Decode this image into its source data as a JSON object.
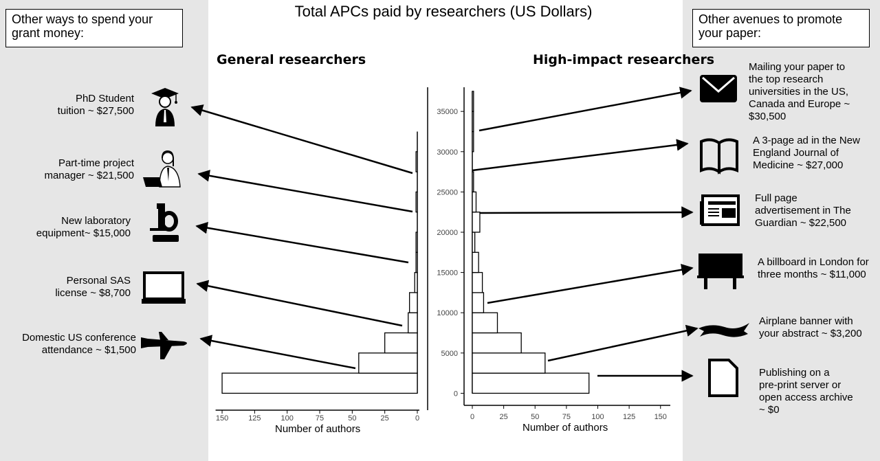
{
  "title": "Total APCs paid by researchers (US Dollars)",
  "left_box": "Other ways to spend your grant money:",
  "right_box": "Other avenues to promote your paper:",
  "left_items": [
    {
      "line1": "PhD Student",
      "line2": "tuition ~ $27,500",
      "icon": "graduate-icon"
    },
    {
      "line1": "Part-time project",
      "line2": "manager ~ $21,500",
      "icon": "office-worker-icon"
    },
    {
      "line1": "New laboratory",
      "line2": "equipment~ $15,000",
      "icon": "microscope-icon"
    },
    {
      "line1": "Personal SAS",
      "line2": "license ~ $8,700",
      "icon": "laptop-icon"
    },
    {
      "line1": "Domestic US conference",
      "line2": "attendance  ~ $1,500",
      "icon": "airplane-icon"
    }
  ],
  "right_items": [
    {
      "lines": [
        "Mailing your paper to",
        "the top research",
        "universities in the US,",
        "Canada and Europe ~",
        "$30,500"
      ],
      "icon": "envelope-icon"
    },
    {
      "lines": [
        "A 3-page ad in the New",
        "England Journal of",
        "Medicine ~ $27,000"
      ],
      "icon": "open-book-icon"
    },
    {
      "lines": [
        "Full page",
        "advertisement in The",
        "Guardian ~ $22,500"
      ],
      "icon": "newspaper-icon"
    },
    {
      "lines": [
        "A billboard in London for",
        "three months ~ $11,000"
      ],
      "icon": "billboard-icon"
    },
    {
      "lines": [
        "Airplane banner with",
        "your abstract ~ $3,200"
      ],
      "icon": "banner-icon"
    },
    {
      "lines": [
        "Publishing on a",
        "pre-print server or",
        "open access archive",
        "~ $0"
      ],
      "icon": "document-icon"
    }
  ],
  "chart_data": [
    {
      "type": "bar",
      "orientation": "horizontal",
      "title": "General researchers",
      "xlabel": "Number of authors",
      "ylabel": "",
      "x_ticks": [
        150,
        125,
        100,
        75,
        50,
        25,
        0
      ],
      "xlim": [
        0,
        155
      ],
      "x_reversed": true,
      "ylim": [
        -1500,
        38000
      ],
      "bin_width": 2500,
      "bins": [
        {
          "from": 0,
          "to": 2500,
          "count": 150
        },
        {
          "from": 2500,
          "to": 5000,
          "count": 45
        },
        {
          "from": 5000,
          "to": 7500,
          "count": 25
        },
        {
          "from": 7500,
          "to": 10000,
          "count": 7
        },
        {
          "from": 10000,
          "to": 12500,
          "count": 6
        },
        {
          "from": 12500,
          "to": 15000,
          "count": 2
        },
        {
          "from": 15000,
          "to": 17500,
          "count": 1
        },
        {
          "from": 17500,
          "to": 20000,
          "count": 1
        },
        {
          "from": 20000,
          "to": 22500,
          "count": 0
        },
        {
          "from": 22500,
          "to": 25000,
          "count": 1
        },
        {
          "from": 25000,
          "to": 27500,
          "count": 0
        },
        {
          "from": 27500,
          "to": 30000,
          "count": 1
        },
        {
          "from": 30000,
          "to": 32500,
          "count": 0
        }
      ],
      "axis_max": 32500
    },
    {
      "type": "bar",
      "orientation": "horizontal",
      "title": "High-impact researchers",
      "xlabel": "Number of authors",
      "ylabel": "",
      "x_ticks": [
        0,
        25,
        50,
        75,
        100,
        125,
        150
      ],
      "y_ticks": [
        0,
        5000,
        10000,
        15000,
        20000,
        25000,
        30000,
        35000
      ],
      "xlim": [
        0,
        155
      ],
      "ylim": [
        -1500,
        38000
      ],
      "bin_width": 2500,
      "bins": [
        {
          "from": 0,
          "to": 2500,
          "count": 93
        },
        {
          "from": 2500,
          "to": 5000,
          "count": 58
        },
        {
          "from": 5000,
          "to": 7500,
          "count": 39
        },
        {
          "from": 7500,
          "to": 10000,
          "count": 20
        },
        {
          "from": 10000,
          "to": 12500,
          "count": 9
        },
        {
          "from": 12500,
          "to": 15000,
          "count": 8
        },
        {
          "from": 15000,
          "to": 17500,
          "count": 5
        },
        {
          "from": 17500,
          "to": 20000,
          "count": 2
        },
        {
          "from": 20000,
          "to": 22500,
          "count": 6
        },
        {
          "from": 22500,
          "to": 25000,
          "count": 3
        },
        {
          "from": 25000,
          "to": 27500,
          "count": 1
        },
        {
          "from": 27500,
          "to": 30000,
          "count": 0
        },
        {
          "from": 30000,
          "to": 32500,
          "count": 1
        },
        {
          "from": 32500,
          "to": 35000,
          "count": 1
        },
        {
          "from": 35000,
          "to": 37500,
          "count": 1
        }
      ],
      "axis_max": 37500
    }
  ]
}
